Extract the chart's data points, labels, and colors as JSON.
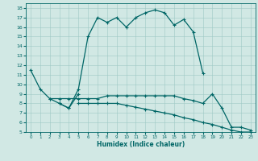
{
  "title": "",
  "xlabel": "Humidex (Indice chaleur)",
  "background_color": "#d1e8e4",
  "grid_color": "#9ec8c4",
  "line_color": "#006666",
  "xlim": [
    -0.5,
    23.5
  ],
  "ylim": [
    5,
    18.5
  ],
  "xticks": [
    0,
    1,
    2,
    3,
    4,
    5,
    6,
    7,
    8,
    9,
    10,
    11,
    12,
    13,
    14,
    15,
    16,
    17,
    18,
    19,
    20,
    21,
    22,
    23
  ],
  "yticks": [
    5,
    6,
    7,
    8,
    9,
    10,
    11,
    12,
    13,
    14,
    15,
    16,
    17,
    18
  ],
  "line1_x": [
    0,
    1,
    2,
    3,
    4,
    5
  ],
  "line1_y": [
    11.5,
    9.5,
    8.5,
    8.0,
    7.5,
    9.0
  ],
  "line2_x": [
    3,
    4,
    5,
    6,
    7,
    8,
    9,
    10,
    11,
    12,
    13,
    14,
    15,
    16,
    17,
    18
  ],
  "line2_y": [
    8.0,
    7.5,
    9.5,
    15.0,
    17.0,
    16.5,
    17.0,
    16.0,
    17.0,
    17.5,
    17.8,
    17.5,
    16.2,
    16.8,
    15.5,
    11.2
  ],
  "line3_x": [
    2,
    3,
    4,
    5,
    6,
    7,
    8,
    9,
    10,
    11,
    12,
    13,
    14,
    15,
    16,
    17,
    18,
    19,
    20,
    21,
    22,
    23
  ],
  "line3_y": [
    8.5,
    8.5,
    8.5,
    8.5,
    8.5,
    8.5,
    8.8,
    8.8,
    8.8,
    8.8,
    8.8,
    8.8,
    8.8,
    8.8,
    8.5,
    8.3,
    8.0,
    9.0,
    7.5,
    5.5,
    5.5,
    5.2
  ],
  "line4_x": [
    5,
    6,
    7,
    8,
    9,
    10,
    11,
    12,
    13,
    14,
    15,
    16,
    17,
    18,
    19,
    20,
    21,
    22,
    23
  ],
  "line4_y": [
    8.0,
    8.0,
    8.0,
    8.0,
    8.0,
    7.8,
    7.6,
    7.4,
    7.2,
    7.0,
    6.8,
    6.5,
    6.3,
    6.0,
    5.8,
    5.5,
    5.2,
    5.0,
    5.0
  ]
}
